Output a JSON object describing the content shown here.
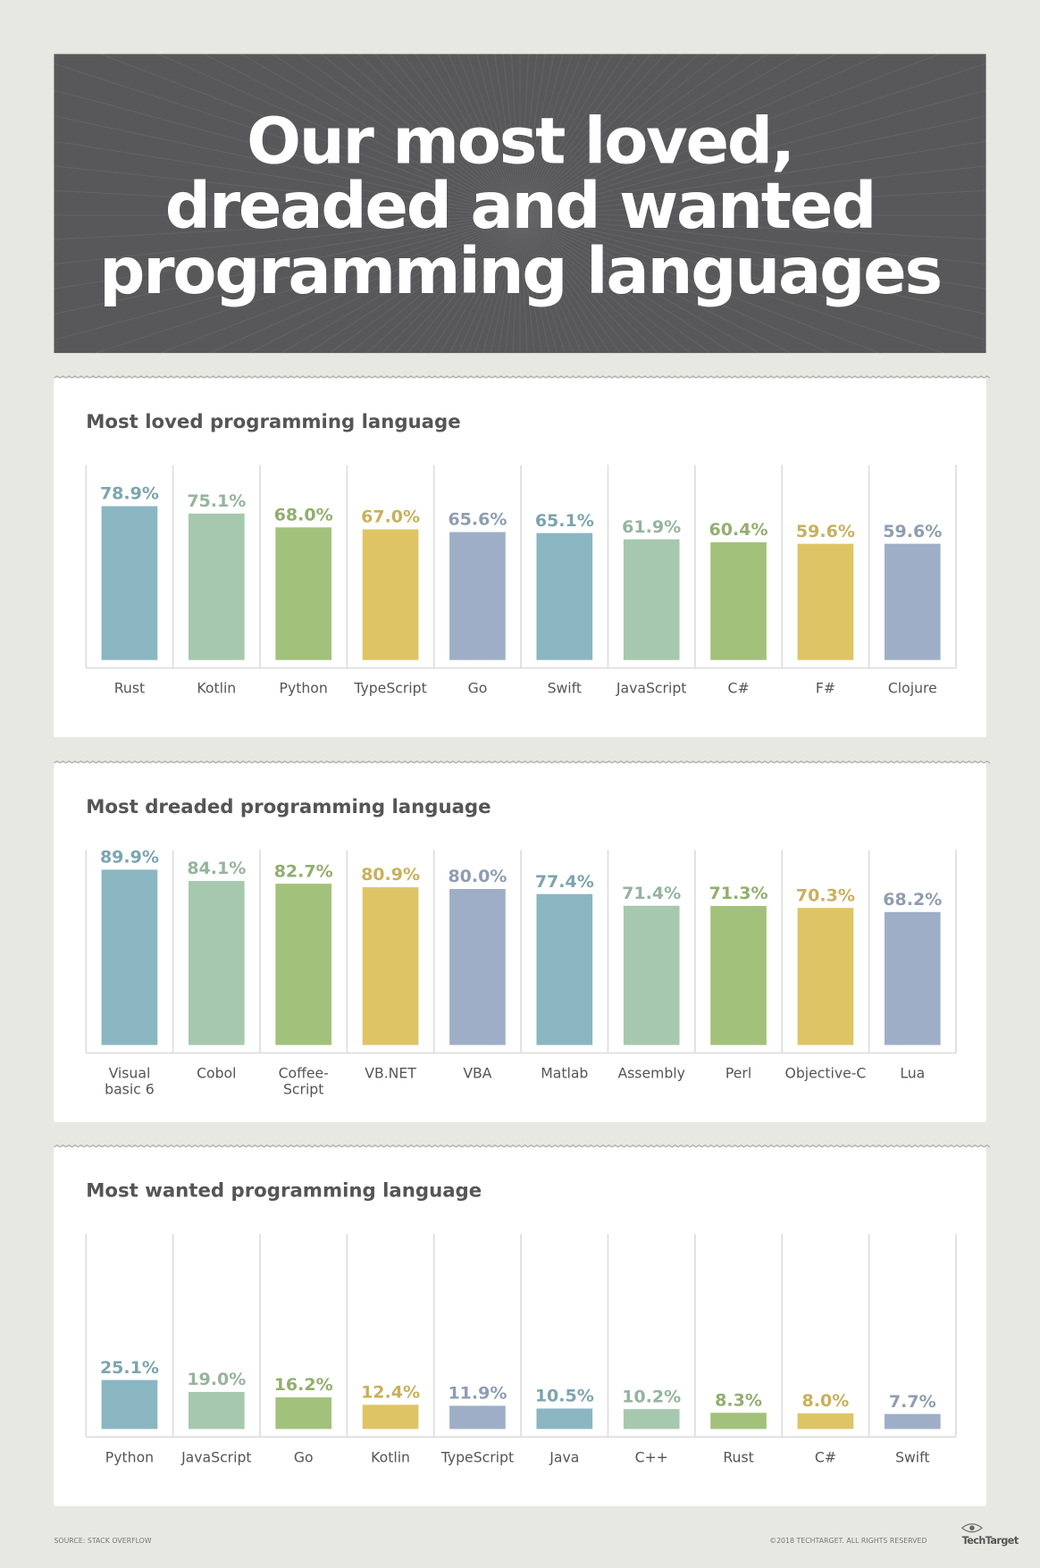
{
  "title_lines": [
    "Our most loved,",
    "dreaded and wanted",
    "programming languages"
  ],
  "source": "SOURCE: STACK OVERFLOW",
  "copyright": "©2018 TECHTARGET. ALL RIGHTS RESERVED",
  "logo": "TechTarget",
  "chart_data": [
    {
      "type": "bar",
      "title": "Most loved programming language",
      "categories": [
        "Rust",
        "Kotlin",
        "Python",
        "TypeScript",
        "Go",
        "Swift",
        "JavaScript",
        "C#",
        "F#",
        "Clojure"
      ],
      "values": [
        78.9,
        75.1,
        68.0,
        67.0,
        65.6,
        65.1,
        61.9,
        60.4,
        59.6,
        59.6
      ],
      "value_labels": [
        "78.9%",
        "75.1%",
        "68.0%",
        "67.0%",
        "65.6%",
        "65.1%",
        "61.9%",
        "60.4%",
        "59.6%",
        "59.6%"
      ],
      "colors": [
        "#8ab6c2",
        "#a6c8ae",
        "#a2c17a",
        "#dfc466",
        "#9eaec6",
        "#8ab6c2",
        "#a6c8ae",
        "#a2c17a",
        "#dfc466",
        "#9eaec6"
      ],
      "ylim": [
        0,
        100
      ]
    },
    {
      "type": "bar",
      "title": "Most dreaded programming language",
      "categories": [
        "Visual\nbasic 6",
        "Cobol",
        "Coffee-\nScript",
        "VB.NET",
        "VBA",
        "Matlab",
        "Assembly",
        "Perl",
        "Objective-C",
        "Lua"
      ],
      "values": [
        89.9,
        84.1,
        82.7,
        80.9,
        80.0,
        77.4,
        71.4,
        71.3,
        70.3,
        68.2
      ],
      "value_labels": [
        "89.9%",
        "84.1%",
        "82.7%",
        "80.9%",
        "80.0%",
        "77.4%",
        "71.4%",
        "71.3%",
        "70.3%",
        "68.2%"
      ],
      "colors": [
        "#8ab6c2",
        "#a6c8ae",
        "#a2c17a",
        "#dfc466",
        "#9eaec6",
        "#8ab6c2",
        "#a6c8ae",
        "#a2c17a",
        "#dfc466",
        "#9eaec6"
      ],
      "ylim": [
        0,
        100
      ]
    },
    {
      "type": "bar",
      "title": "Most wanted programming language",
      "categories": [
        "Python",
        "JavaScript",
        "Go",
        "Kotlin",
        "TypeScript",
        "Java",
        "C++",
        "Rust",
        "C#",
        "Swift"
      ],
      "values": [
        25.1,
        19.0,
        16.2,
        12.4,
        11.9,
        10.5,
        10.2,
        8.3,
        8.0,
        7.7
      ],
      "value_labels": [
        "25.1%",
        "19.0%",
        "16.2%",
        "12.4%",
        "11.9%",
        "10.5%",
        "10.2%",
        "8.3%",
        "8.0%",
        "7.7%"
      ],
      "colors": [
        "#8ab6c2",
        "#a6c8ae",
        "#a2c17a",
        "#dfc466",
        "#9eaec6",
        "#8ab6c2",
        "#a6c8ae",
        "#a2c17a",
        "#dfc466",
        "#9eaec6"
      ],
      "ylim": [
        0,
        100
      ]
    }
  ]
}
